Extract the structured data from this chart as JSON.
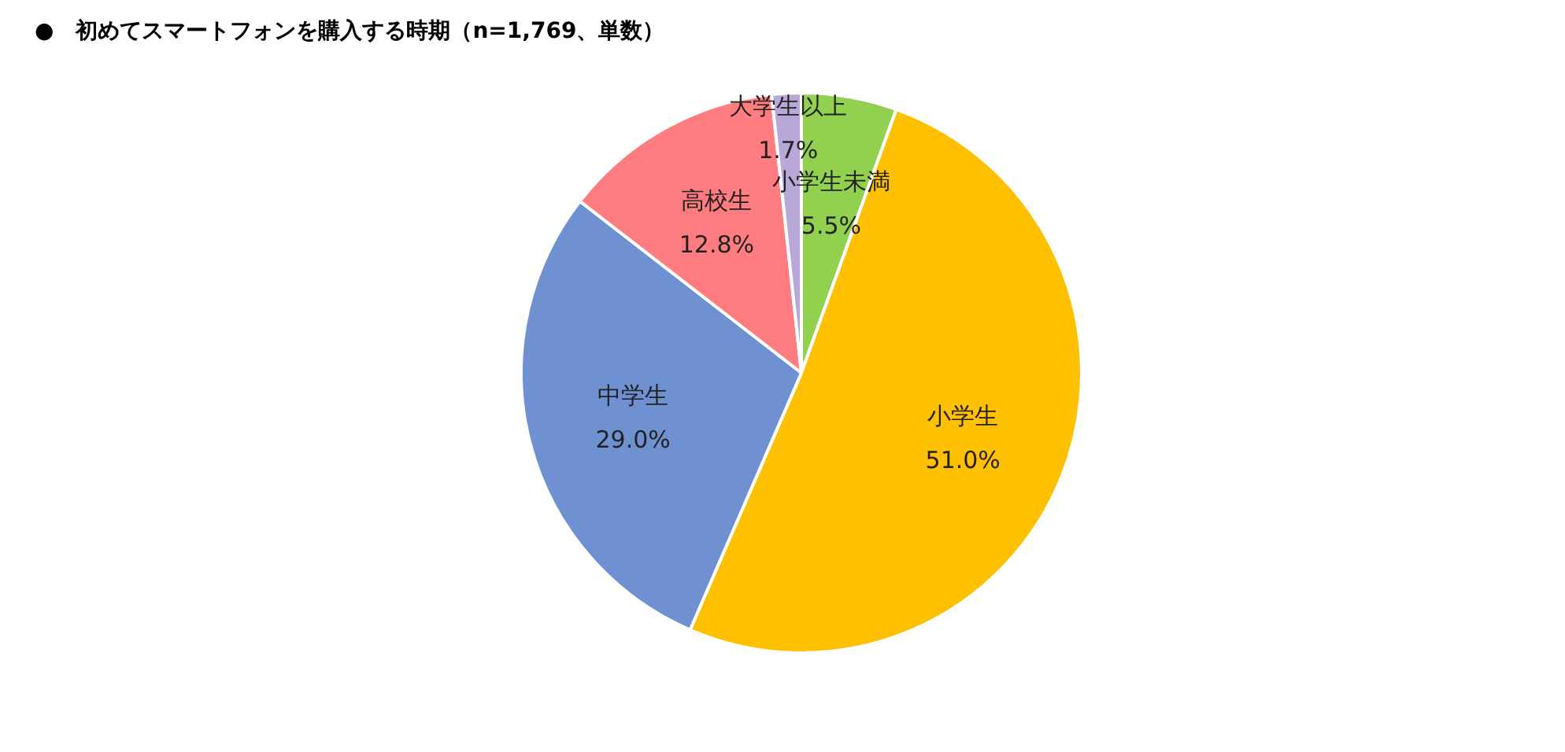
{
  "chart_data": {
    "type": "pie",
    "title": "●　初めてスマートフォンを購入する時期（n=1,769、単数）",
    "categories": [
      "小学生未満",
      "小学生",
      "中学生",
      "高校生",
      "大学生以上"
    ],
    "values": [
      5.5,
      51.0,
      29.0,
      12.8,
      1.7
    ],
    "colors": [
      "#92d050",
      "#ffc000",
      "#6f91d1",
      "#ff7c80",
      "#b8a8d8"
    ],
    "value_labels": [
      "5.5%",
      "51.0%",
      "29.0%",
      "12.8%",
      "1.7%"
    ]
  }
}
